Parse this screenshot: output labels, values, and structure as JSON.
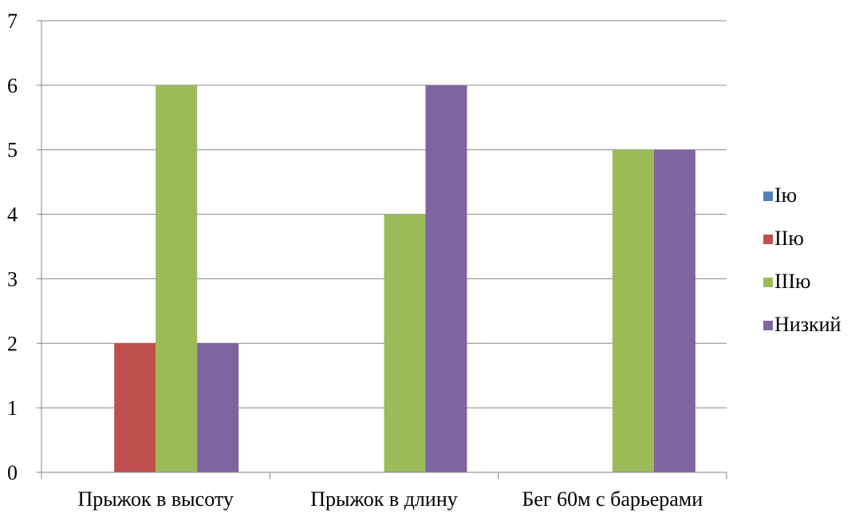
{
  "chart_data": {
    "type": "bar",
    "title": "",
    "xlabel": "",
    "ylabel": "",
    "categories": [
      "Прыжок в высоту",
      "Прыжок в длину",
      "Бег 60м с барьерами"
    ],
    "series": [
      {
        "name": "Iю",
        "values": [
          0,
          0,
          0
        ],
        "color": "#4F81BD"
      },
      {
        "name": "IIю",
        "values": [
          2,
          0,
          0
        ],
        "color": "#C0504D"
      },
      {
        "name": "IIIю",
        "values": [
          6,
          4,
          5
        ],
        "color": "#9BBB59"
      },
      {
        "name": "Низкий",
        "values": [
          2,
          6,
          5
        ],
        "color": "#8064A2"
      }
    ],
    "ylim": [
      0,
      7
    ],
    "yticks": [
      "0",
      "1",
      "2",
      "3",
      "4",
      "5",
      "6",
      "7"
    ],
    "grid": true,
    "legend_position": "right"
  }
}
